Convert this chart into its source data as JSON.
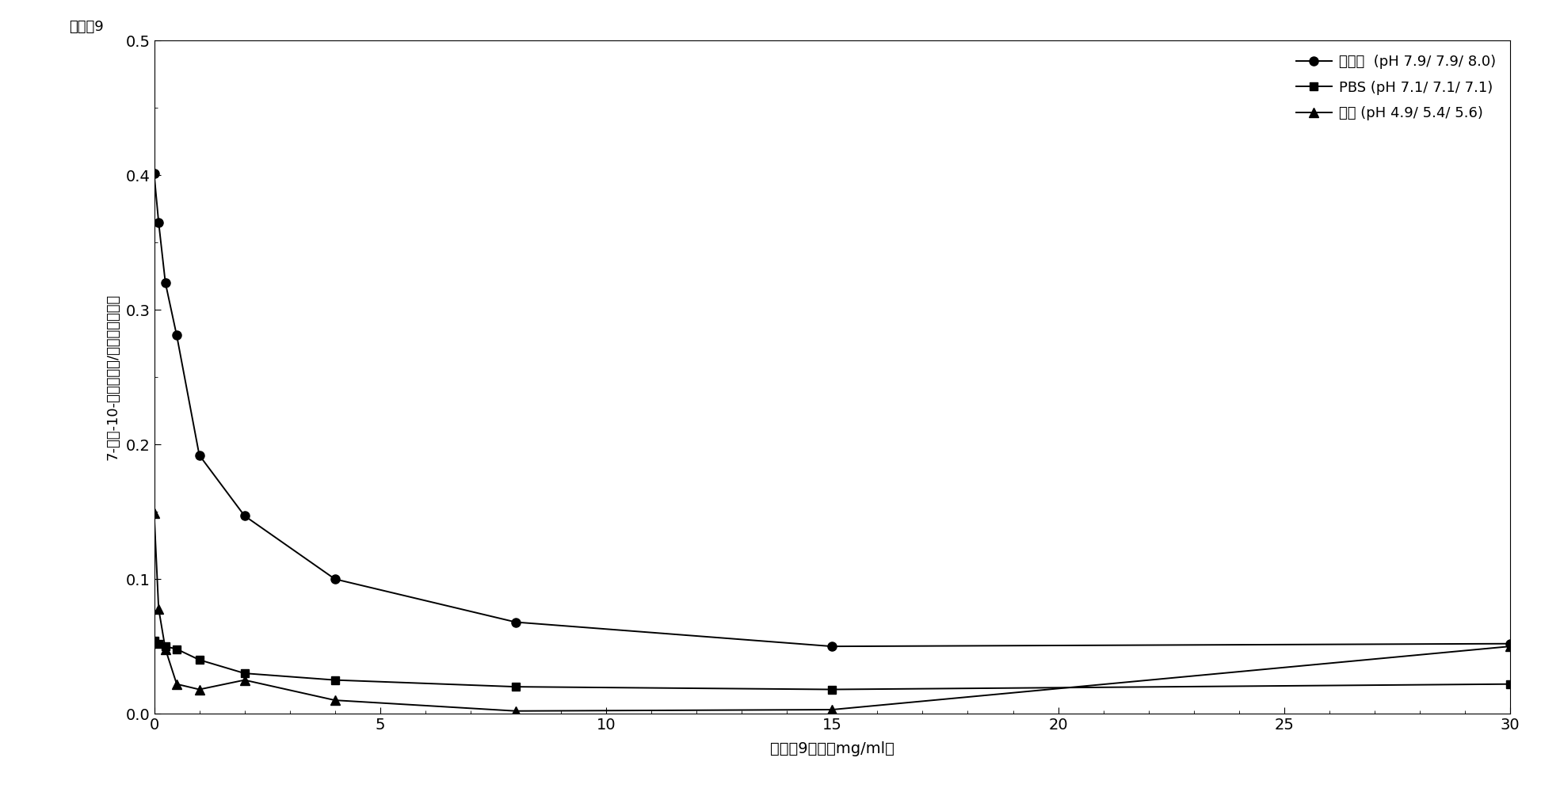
{
  "xlabel": "化合眉9浓度（mg/ml）",
  "ylabel_line1": "7-乙基-10-羟基樏纭笠/化合物峰面积比",
  "ylabel_top": "化合礉9",
  "xlim": [
    0,
    30
  ],
  "ylim": [
    0,
    0.5
  ],
  "yticks": [
    0.0,
    0.1,
    0.2,
    0.3,
    0.4,
    0.5
  ],
  "xticks": [
    0,
    5,
    10,
    15,
    20,
    25,
    30
  ],
  "series": [
    {
      "label": "人血浆  (pH 7.9/ 7.9/ 8.0)",
      "x": [
        0.0,
        0.1,
        0.25,
        0.5,
        1.0,
        2.0,
        4.0,
        8.0,
        15.0,
        30.0
      ],
      "y": [
        0.401,
        0.365,
        0.32,
        0.281,
        0.192,
        0.147,
        0.1,
        0.068,
        0.05,
        0.052
      ],
      "marker": "o",
      "markersize": 8
    },
    {
      "label": "PBS (pH 7.1/ 7.1/ 7.1)",
      "x": [
        0.0,
        0.1,
        0.25,
        0.5,
        1.0,
        2.0,
        4.0,
        8.0,
        15.0,
        30.0
      ],
      "y": [
        0.054,
        0.052,
        0.05,
        0.048,
        0.04,
        0.03,
        0.025,
        0.02,
        0.018,
        0.022
      ],
      "marker": "s",
      "markersize": 7
    },
    {
      "label": "盐水 (pH 4.9/ 5.4/ 5.6)",
      "x": [
        0.0,
        0.1,
        0.25,
        0.5,
        1.0,
        2.0,
        4.0,
        8.0,
        15.0,
        30.0
      ],
      "y": [
        0.149,
        0.078,
        0.048,
        0.022,
        0.018,
        0.025,
        0.01,
        0.002,
        0.003,
        0.05
      ],
      "marker": "^",
      "markersize": 8
    }
  ],
  "background_color": "#ffffff",
  "figure_width": 19.45,
  "figure_height": 10.24,
  "dpi": 100
}
